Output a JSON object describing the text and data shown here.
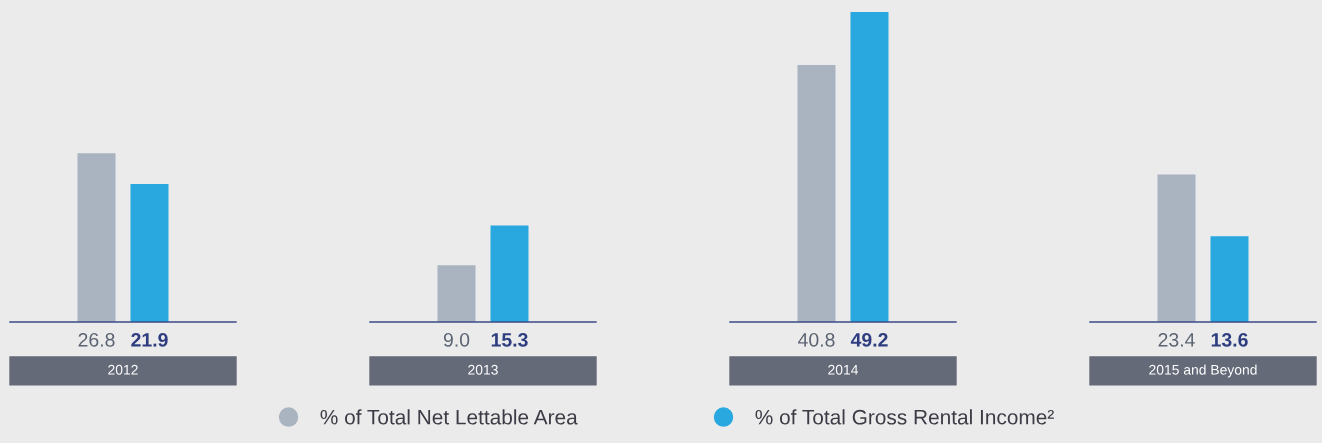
{
  "chart_data": {
    "type": "bar",
    "categories": [
      "2012",
      "2013",
      "2014",
      "2015 and Beyond"
    ],
    "series": [
      {
        "name": "% of Total Net Lettable Area",
        "color": "#a9b4c0",
        "values": [
          26.8,
          9.0,
          40.8,
          23.4
        ],
        "value_labels": [
          "26.8",
          "9.0",
          "40.8",
          "23.4"
        ]
      },
      {
        "name": "% of Total Gross Rental Income²",
        "color": "#29a8e0",
        "values": [
          21.9,
          15.3,
          49.2,
          13.6
        ],
        "value_labels": [
          "21.9",
          "15.3",
          "49.2",
          "13.6"
        ]
      }
    ],
    "legend": "bottom"
  }
}
